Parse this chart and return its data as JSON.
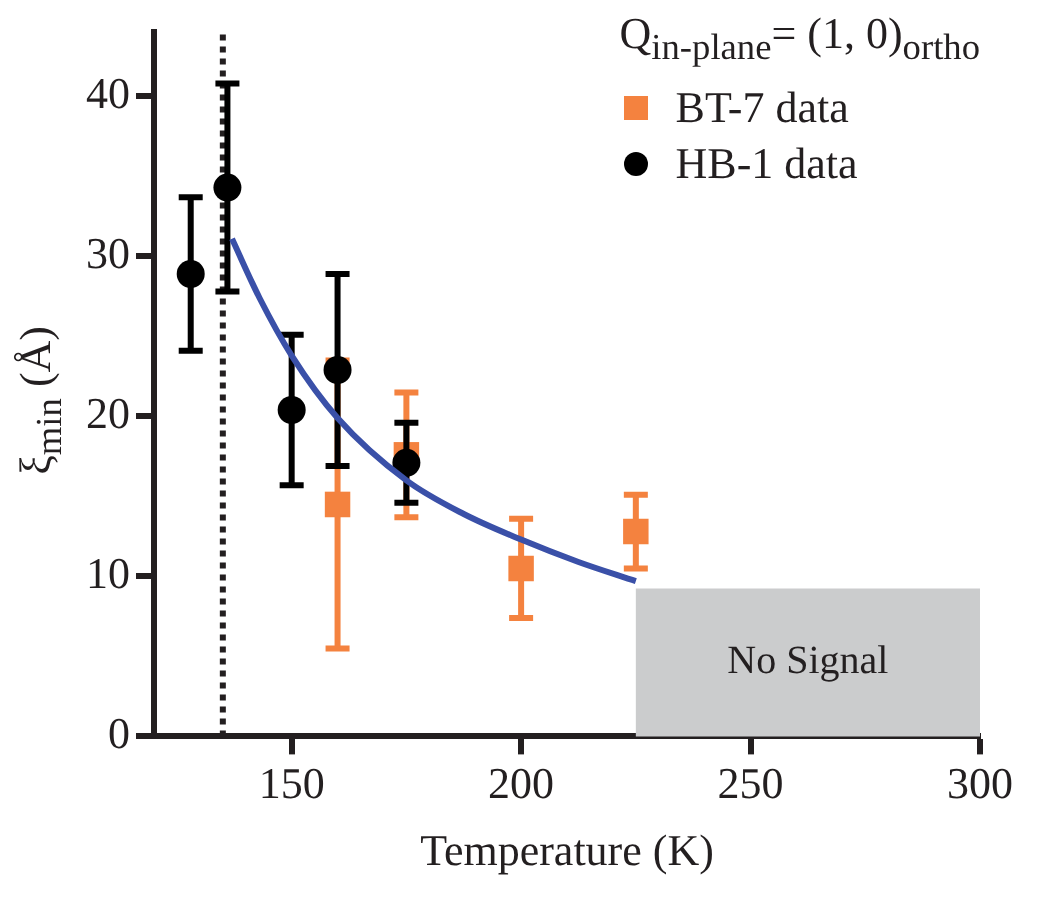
{
  "chart_data": {
    "type": "scatter",
    "xlabel": "Temperature (K)",
    "ylabel": "ξ$_{min}$ (Å)",
    "legend_title": "Q$_{in-plane}$= (1, 0)$_{ortho}$",
    "xlim": [
      120,
      300
    ],
    "xticks": [
      150,
      200,
      250,
      300
    ],
    "ylim": [
      0,
      44
    ],
    "yticks": [
      0,
      10,
      20,
      30,
      40
    ],
    "legend": "top right",
    "ref_lines": [
      {
        "axis": "x",
        "value": 135,
        "line_style": "dotted",
        "color": "#231f20"
      }
    ],
    "bands": [
      {
        "axis": "x",
        "from": 225,
        "to": 300,
        "label": "No Signal",
        "color": "#cbcccd"
      }
    ],
    "series": [
      {
        "name": "BT-7 data",
        "color": "#f4823f",
        "marker": "square",
        "x": [
          160,
          175,
          200,
          225
        ],
        "values": [
          14.5,
          17.6,
          10.5,
          12.8
        ],
        "errors": [
          9,
          3.9,
          3.1,
          2.3
        ]
      },
      {
        "name": "HB-1 data",
        "color": "#000000",
        "marker": "circle",
        "x": [
          128,
          136,
          150,
          160,
          175
        ],
        "values": [
          28.9,
          34.3,
          20.4,
          22.9,
          17.1
        ],
        "errors": [
          4.8,
          6.5,
          4.7,
          6,
          2.5
        ]
      },
      {
        "type": "line",
        "color": "#3a50a8",
        "marker": "none",
        "x": [
          137,
          143,
          150,
          160,
          175,
          187.5,
          200,
          212.5,
          225
        ],
        "values": [
          31.1,
          27.4,
          23.8,
          19.9,
          16,
          13.9,
          12.3,
          10.9,
          9.7
        ]
      }
    ]
  }
}
